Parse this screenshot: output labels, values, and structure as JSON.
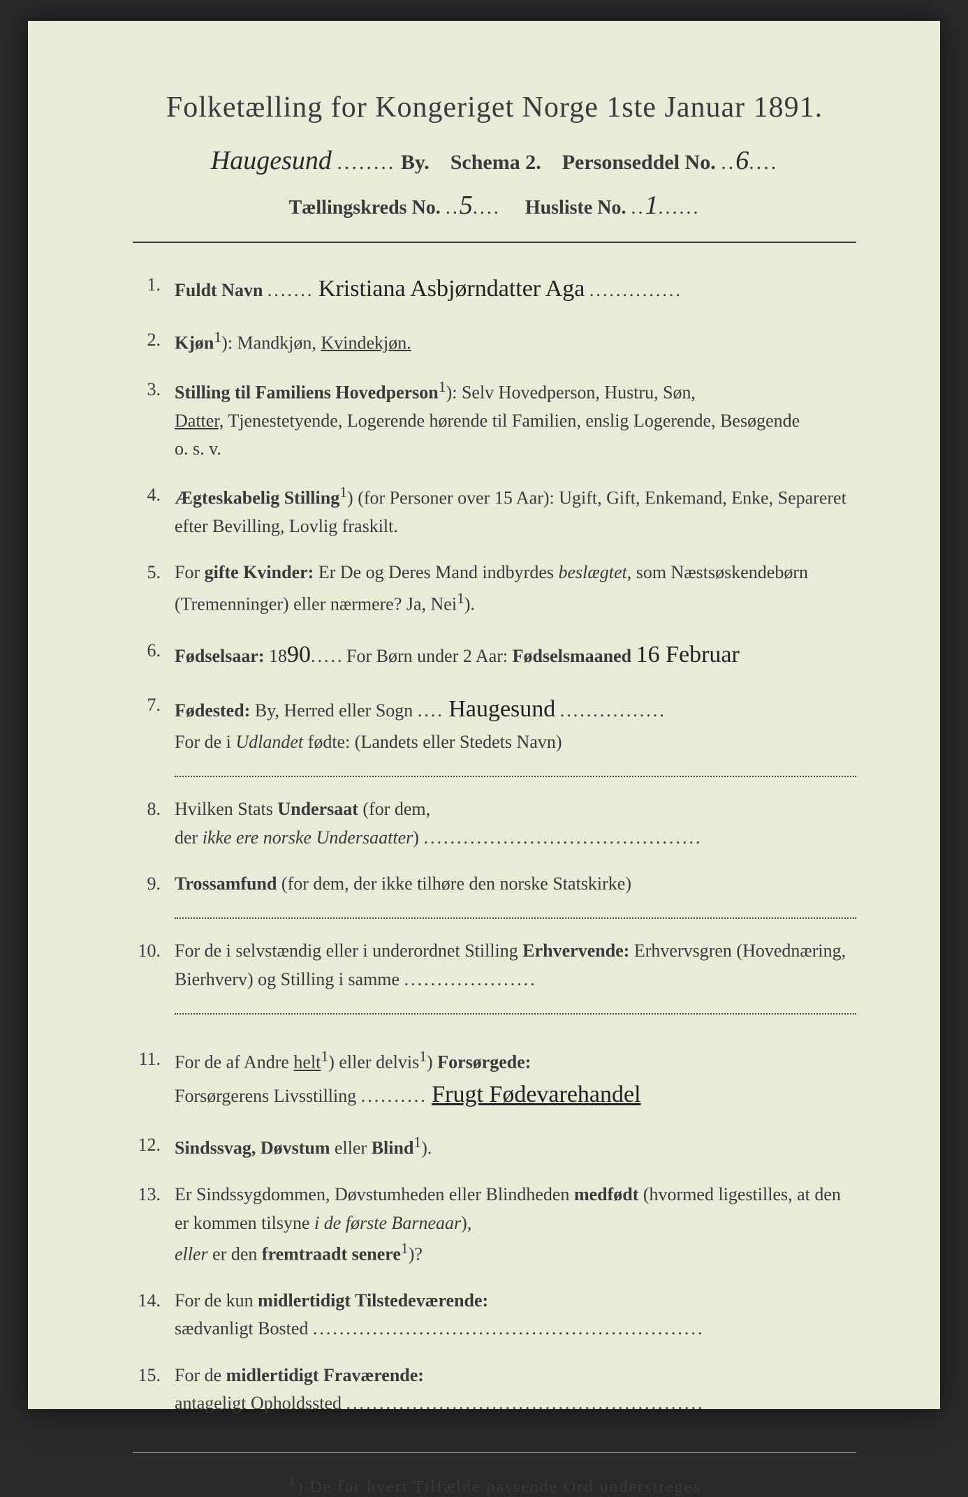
{
  "title": "Folketælling for Kongeriget Norge 1ste Januar 1891.",
  "header": {
    "by_handwritten": "Haugesund",
    "by_label": "By.",
    "schema": "Schema 2.",
    "personseddel_label": "Personseddel No.",
    "personseddel_no": "6",
    "taellingskreds_label": "Tællingskreds No.",
    "taellingskreds_no": "5",
    "husliste_label": "Husliste No.",
    "husliste_no": "1"
  },
  "items": {
    "1": {
      "label": "Fuldt Navn",
      "value": "Kristiana Asbjørndatter Aga"
    },
    "2": {
      "label": "Kjøn",
      "sup": "1",
      "text": "): Mandkjøn, ",
      "underlined": "Kvindekjøn."
    },
    "3": {
      "label": "Stilling til Familiens Hovedperson",
      "sup": "1",
      "text1": "): Selv Hovedperson, Hustru, Søn,",
      "underlined": "Datter,",
      "text2": " Tjenestetyende, Logerende hørende til Familien, enslig Logerende, Besøgende",
      "text3": "o. s. v."
    },
    "4": {
      "label": "Ægteskabelig Stilling",
      "sup": "1",
      "text": ") (for Personer over 15 Aar): Ugift, Gift, Enkemand, Enke, Separeret efter Bevilling, Lovlig fraskilt."
    },
    "5": {
      "label_pre": "For ",
      "label": "gifte Kvinder:",
      "text": " Er De og Deres Mand indbyrdes ",
      "italic": "beslægtet",
      "text2": ", som Næstsøskendebørn (Tremenninger) eller nærmere? Ja, Nei",
      "sup": "1",
      "text3": ")."
    },
    "6": {
      "label": "Fødselsaar:",
      "year_prefix": " 18",
      "year_hw": "90",
      "text": ". For Børn under 2 Aar: ",
      "label2": "Fødselsmaaned",
      "month_hw": "16 Februar"
    },
    "7": {
      "label": "Fødested:",
      "text": " By, Herred eller Sogn",
      "value": "Haugesund",
      "text2": "For de i ",
      "italic": "Udlandet",
      "text3": " fødte: (Landets eller Stedets Navn)"
    },
    "8": {
      "text1": "Hvilken Stats ",
      "label": "Undersaat",
      "text2": " (for dem,",
      "text3": "der ",
      "italic": "ikke ere norske Undersaatter",
      "text4": ")"
    },
    "9": {
      "label": "Trossamfund",
      "text": " (for dem, der ikke tilhøre den norske Statskirke)"
    },
    "10": {
      "text1": "For de i selvstændig eller i underordnet Stilling ",
      "label": "Erhvervende:",
      "text2": " Erhvervsgren (Hovednæring, Bierhverv) og Stilling i samme"
    },
    "11": {
      "text1": "For de af Andre ",
      "u1": "helt",
      "sup1": "1",
      "text2": ") eller delvis",
      "sup2": "1",
      "text3": ") ",
      "label": "Forsørgede:",
      "text4": "Forsørgerens Livsstilling",
      "value": "Frugt Fødevarehandel"
    },
    "12": {
      "label": "Sindssvag, Døvstum",
      "text": " eller ",
      "label2": "Blind",
      "sup": "1",
      "text2": ")."
    },
    "13": {
      "text1": "Er Sindssygdommen, Døvstumheden eller Blindheden ",
      "b1": "medfødt",
      "text2": " (hvormed ligestilles, at den er kommen tilsyne ",
      "italic": "i de første Barneaar",
      "text3": "),",
      "italic2": "eller",
      "text4": " er den ",
      "b2": "fremtraadt senere",
      "sup": "1",
      "text5": ")?"
    },
    "14": {
      "text1": "For de kun ",
      "label": "midlertidigt Tilstedeværende:",
      "text2": "sædvanligt Bosted"
    },
    "15": {
      "text1": "For de ",
      "label": "midlertidigt Fraværende:",
      "text2": "antageligt Opholdssted"
    }
  },
  "footnote": {
    "sup": "1",
    "text": ") De for hvert Tilfælde passende Ord understreges"
  },
  "colors": {
    "page_bg": "#e8ebd8",
    "outer_bg": "#2a2a2a",
    "text": "#3a3a3a",
    "handwriting": "#222222"
  },
  "typography": {
    "title_size_pt": 32,
    "body_size_pt": 20,
    "handwriting_family": "cursive"
  }
}
